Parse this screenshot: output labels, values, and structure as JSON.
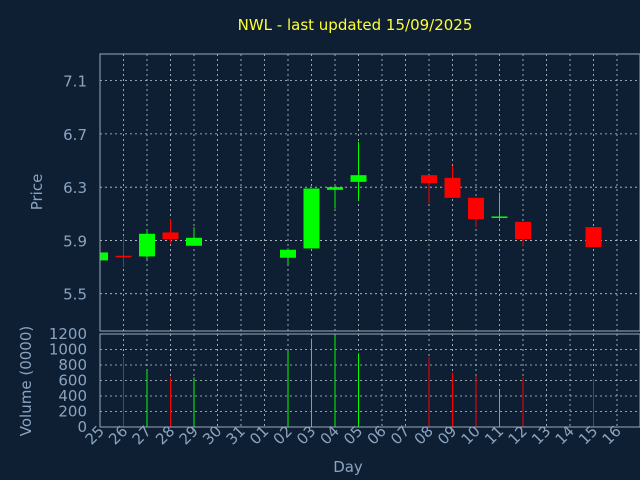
{
  "chart_data": {
    "type": "candlestick",
    "title": "NWL - last updated 15/09/2025",
    "xlabel": "Day",
    "price_ylabel": "Price",
    "volume_ylabel": "Volume (0000)",
    "categories": [
      "25",
      "26",
      "27",
      "28",
      "29",
      "30",
      "31",
      "01",
      "02",
      "03",
      "04",
      "05",
      "06",
      "07",
      "08",
      "09",
      "10",
      "11",
      "12",
      "13",
      "14",
      "15",
      "16"
    ],
    "price_ticks": [
      "5.5",
      "5.9",
      "6.3",
      "6.7",
      "7.1"
    ],
    "price_ylim": [
      5.22,
      7.3
    ],
    "volume_ticks": [
      "0",
      "200",
      "400",
      "600",
      "800",
      "1000",
      "1200"
    ],
    "volume_ylim": [
      0,
      1200
    ],
    "colors": {
      "up": "#00ff00",
      "down": "#ff0000",
      "grid": "#c0c8d0"
    },
    "candles": [
      {
        "day": "25",
        "open": 5.75,
        "close": 5.81,
        "high": 5.81,
        "low": 5.75,
        "volume": 0
      },
      {
        "day": "26",
        "open": 5.785,
        "close": 5.775,
        "high": 5.93,
        "low": 5.7,
        "volume": 900
      },
      {
        "day": "27",
        "open": 5.78,
        "close": 5.95,
        "high": 5.98,
        "low": 5.76,
        "volume": 730
      },
      {
        "day": "28",
        "open": 5.96,
        "close": 5.91,
        "high": 6.06,
        "low": 5.88,
        "volume": 640
      },
      {
        "day": "29",
        "open": 5.86,
        "close": 5.92,
        "high": 6.0,
        "low": 5.86,
        "volume": 640
      },
      {
        "day": "02",
        "open": 5.77,
        "close": 5.83,
        "high": 5.84,
        "low": 5.72,
        "volume": 980
      },
      {
        "day": "03",
        "open": 5.84,
        "close": 6.29,
        "high": 6.29,
        "low": 5.84,
        "volume": 1140
      },
      {
        "day": "04",
        "open": 6.28,
        "close": 6.3,
        "high": 6.31,
        "low": 6.14,
        "volume": 1180
      },
      {
        "day": "05",
        "open": 6.34,
        "close": 6.39,
        "high": 6.64,
        "low": 6.2,
        "volume": 950
      },
      {
        "day": "08",
        "open": 6.39,
        "close": 6.33,
        "high": 6.39,
        "low": 6.18,
        "volume": 900
      },
      {
        "day": "09",
        "open": 6.37,
        "close": 6.22,
        "high": 6.46,
        "low": 6.22,
        "volume": 700
      },
      {
        "day": "10",
        "open": 6.22,
        "close": 6.06,
        "high": 6.22,
        "low": 6.0,
        "volume": 660
      },
      {
        "day": "11",
        "open": 6.07,
        "close": 6.08,
        "high": 6.26,
        "low": 6.05,
        "volume": 470
      },
      {
        "day": "12",
        "open": 6.04,
        "close": 5.91,
        "high": 6.04,
        "low": 5.86,
        "volume": 640
      },
      {
        "day": "15",
        "open": 6.0,
        "close": 5.85,
        "high": 6.0,
        "low": 5.85,
        "volume": 620
      }
    ]
  }
}
